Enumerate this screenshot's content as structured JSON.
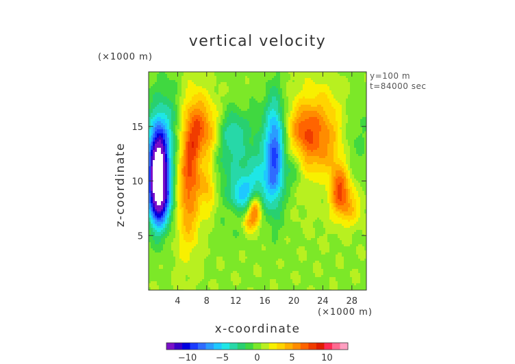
{
  "chart_data": {
    "type": "heatmap",
    "title": "vertical velocity",
    "xlabel": "x-coordinate",
    "ylabel": "z-coordinate",
    "x_unit": "(×1000 m)",
    "y_unit": "(×1000 m)",
    "annotations": [
      "y=100 m",
      "t=84000 sec"
    ],
    "x_ticks": [
      4,
      8,
      12,
      16,
      20,
      24,
      28
    ],
    "y_ticks": [
      5,
      10,
      15
    ],
    "xlim": [
      0,
      30
    ],
    "ylim": [
      0,
      20
    ],
    "grid": false,
    "colorbar": {
      "min": -13,
      "max": 13,
      "ticks": [
        -10,
        -5,
        0,
        5,
        10
      ],
      "colors": [
        "#7a10c8",
        "#3a00c8",
        "#0000e0",
        "#1a3cff",
        "#2f6cff",
        "#2a9cff",
        "#1ec8ff",
        "#1ee6e6",
        "#27d8a8",
        "#28d070",
        "#40d840",
        "#7ce828",
        "#b8f020",
        "#f8f000",
        "#ffd400",
        "#ffb000",
        "#ff8c00",
        "#ff6400",
        "#f03c00",
        "#e01c00",
        "#ff2a55",
        "#ff6a90",
        "#ff9ec0"
      ]
    },
    "field_features": [
      {
        "x": 1.3,
        "z": 10.5,
        "sx": 0.9,
        "sz": 2.8,
        "value": -15.5
      },
      {
        "x": 1.6,
        "z": 12.5,
        "sx": 1.5,
        "sz": 3.5,
        "value": -3
      },
      {
        "x": 1.8,
        "z": 8.0,
        "sx": 1.4,
        "sz": 1.6,
        "value": -4
      },
      {
        "x": 4.8,
        "z": 13.5,
        "sx": 2.6,
        "sz": 3.6,
        "value": -4
      },
      {
        "x": 5.4,
        "z": 11.0,
        "sx": 1.3,
        "sz": 4.2,
        "value": 9
      },
      {
        "x": 6.6,
        "z": 14.5,
        "sx": 1.2,
        "sz": 2.6,
        "value": 4
      },
      {
        "x": 8.1,
        "z": 14.0,
        "sx": 1.5,
        "sz": 2.4,
        "value": 6
      },
      {
        "x": 8.1,
        "z": 10.0,
        "sx": 1.1,
        "sz": 1.1,
        "value": 2.5
      },
      {
        "x": 7.2,
        "z": 12.2,
        "sx": 0.5,
        "sz": 1.3,
        "value": -1.5
      },
      {
        "x": 8.3,
        "z": 8.3,
        "sx": 0.7,
        "sz": 1.3,
        "value": 2.5
      },
      {
        "x": 10.3,
        "z": 12.2,
        "sx": 2.8,
        "sz": 2.6,
        "value": -3.2
      },
      {
        "x": 11.6,
        "z": 14.6,
        "sx": 1.2,
        "sz": 1.3,
        "value": -2.5
      },
      {
        "x": 12.7,
        "z": 8.7,
        "sx": 1.0,
        "sz": 1.0,
        "value": -4
      },
      {
        "x": 14.8,
        "z": 9.6,
        "sx": 1.6,
        "sz": 1.6,
        "value": -3
      },
      {
        "x": 14.7,
        "z": 7.3,
        "sx": 0.6,
        "sz": 1.1,
        "value": 6.5
      },
      {
        "x": 13.8,
        "z": 6.3,
        "sx": 0.6,
        "sz": 0.7,
        "value": 3.5
      },
      {
        "x": 17.4,
        "z": 12.6,
        "sx": 0.9,
        "sz": 3.4,
        "value": -7.5
      },
      {
        "x": 16.6,
        "z": 12.5,
        "sx": 2.2,
        "sz": 3.8,
        "value": -2
      },
      {
        "x": 23.6,
        "z": 13.6,
        "sx": 2.9,
        "sz": 3.2,
        "value": 6
      },
      {
        "x": 26.3,
        "z": 9.3,
        "sx": 1.0,
        "sz": 1.5,
        "value": 7
      },
      {
        "x": 27.7,
        "z": 7.5,
        "sx": 1.2,
        "sz": 1.2,
        "value": 3
      },
      {
        "x": 21.2,
        "z": 14.8,
        "sx": 1.3,
        "sz": 1.4,
        "value": 3
      },
      {
        "x": 20.1,
        "z": 11.0,
        "sx": 1.0,
        "sz": 1.3,
        "value": -2.5
      },
      {
        "x": 24.2,
        "z": 9.8,
        "sx": 1.7,
        "sz": 1.5,
        "value": -2.2
      },
      {
        "x": 27.8,
        "z": 13.6,
        "sx": 2.0,
        "sz": 3.0,
        "value": -2.5
      },
      {
        "x": 11.0,
        "z": 5.2,
        "sx": 1.5,
        "sz": 1.0,
        "value": -0.7
      }
    ]
  }
}
